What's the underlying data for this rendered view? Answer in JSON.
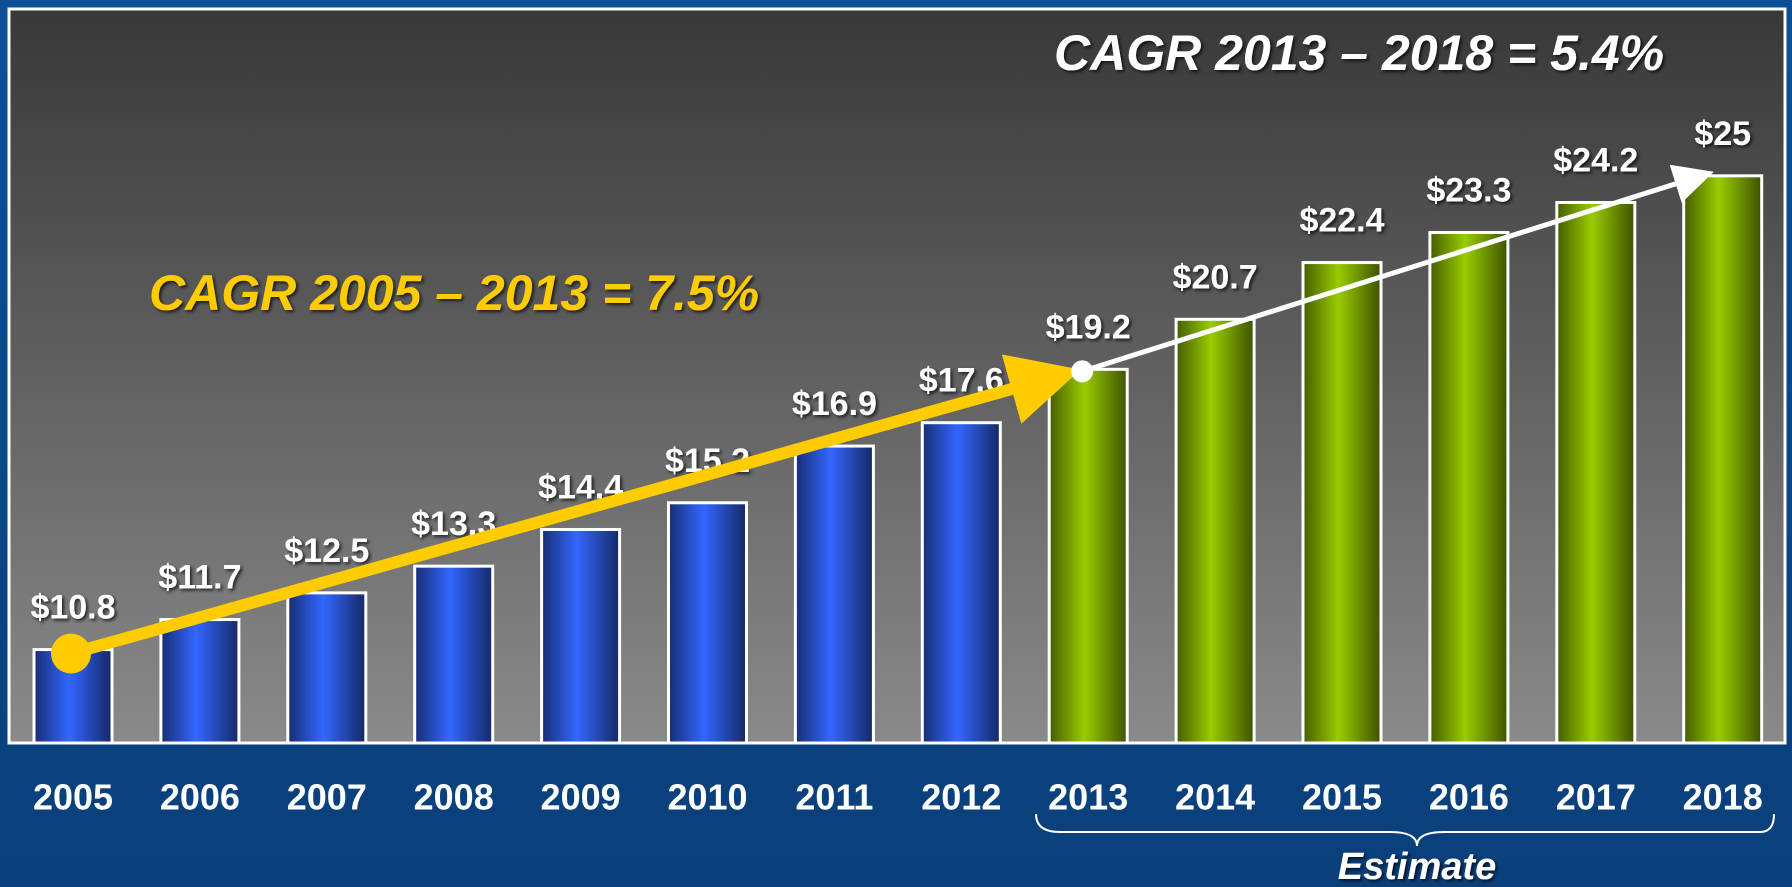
{
  "chart_data": {
    "type": "bar",
    "categories": [
      "2005",
      "2006",
      "2007",
      "2008",
      "2009",
      "2010",
      "2011",
      "2012",
      "2013",
      "2014",
      "2015",
      "2016",
      "2017",
      "2018"
    ],
    "values": [
      10.8,
      11.7,
      12.5,
      13.3,
      14.4,
      15.2,
      16.9,
      17.6,
      19.2,
      20.7,
      22.4,
      23.3,
      24.2,
      25
    ],
    "value_labels": [
      "$10.8",
      "$11.7",
      "$12.5",
      "$13.3",
      "$14.4",
      "$15.2",
      "$16.9",
      "$17.6",
      "$19.2",
      "$20.7",
      "$22.4",
      "$23.3",
      "$24.2",
      "$25"
    ],
    "colors": [
      "#3366ff",
      "#3366ff",
      "#3366ff",
      "#3366ff",
      "#3366ff",
      "#3366ff",
      "#3366ff",
      "#3366ff",
      "#99cc00",
      "#99cc00",
      "#99cc00",
      "#99cc00",
      "#99cc00",
      "#99cc00"
    ],
    "ylim": [
      8,
      30
    ],
    "annotations": [
      "CAGR 2005 – 2013 = 7.5%",
      "CAGR 2013 – 2018 = 5.4%",
      "Estimate"
    ]
  }
}
